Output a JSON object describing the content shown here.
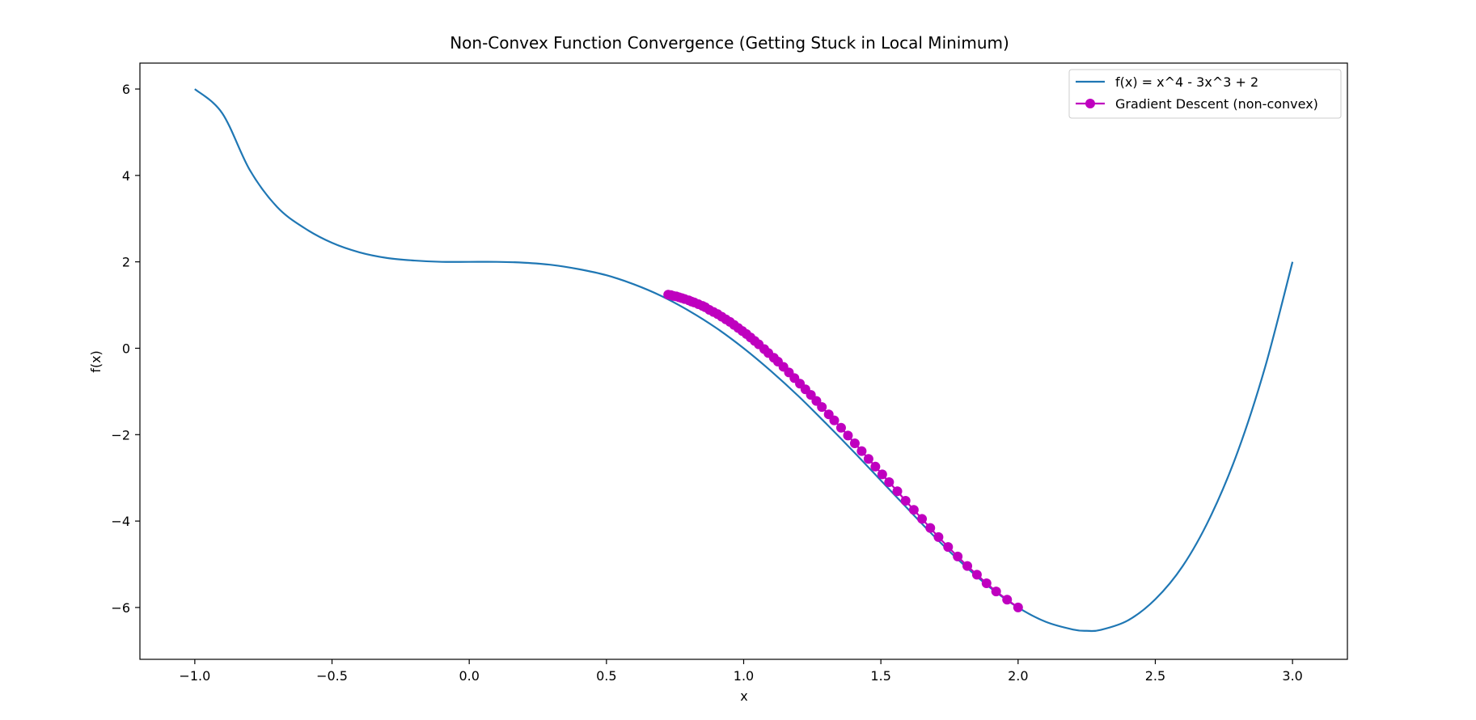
{
  "chart_data": {
    "type": "line",
    "title": "Non-Convex Function Convergence (Getting Stuck in Local Minimum)",
    "xlabel": "x",
    "ylabel": "f(x)",
    "xlim": [
      -1.2,
      3.2
    ],
    "ylim": [
      -7.2,
      6.6
    ],
    "x_ticks": [
      -1.0,
      -0.5,
      0.0,
      0.5,
      1.0,
      1.5,
      2.0,
      2.5,
      3.0
    ],
    "x_tick_labels": [
      "−1.0",
      "−0.5",
      "0.0",
      "0.5",
      "1.0",
      "1.5",
      "2.0",
      "2.5",
      "3.0"
    ],
    "y_ticks": [
      -6,
      -4,
      -2,
      0,
      2,
      4,
      6
    ],
    "y_tick_labels": [
      "−6",
      "−4",
      "−2",
      "0",
      "2",
      "4",
      "6"
    ],
    "grid": false,
    "legend_position": "top-right",
    "series": [
      {
        "name": "f(x) = x^4 - 3x^3 + 2",
        "kind": "line",
        "color": "#1f77b4",
        "x": [
          -1.0,
          -0.9,
          -0.8,
          -0.7,
          -0.6,
          -0.5,
          -0.4,
          -0.3,
          -0.2,
          -0.1,
          0.0,
          0.1,
          0.2,
          0.3,
          0.4,
          0.5,
          0.6,
          0.7,
          0.8,
          0.9,
          1.0,
          1.1,
          1.2,
          1.3,
          1.4,
          1.5,
          1.6,
          1.7,
          1.8,
          1.9,
          2.0,
          2.1,
          2.2,
          2.25,
          2.3,
          2.4,
          2.5,
          2.6,
          2.7,
          2.8,
          2.9,
          3.0
        ],
        "y": [
          6.0,
          5.44,
          4.13,
          3.27,
          2.78,
          2.44,
          2.22,
          2.09,
          2.03,
          2.0,
          2.0,
          2.0,
          1.98,
          1.93,
          1.83,
          1.69,
          1.48,
          1.21,
          0.87,
          0.47,
          0.0,
          -0.53,
          -1.11,
          -1.74,
          -2.39,
          -3.06,
          -3.73,
          -4.39,
          -5.0,
          -5.55,
          -6.0,
          -6.33,
          -6.51,
          -6.54,
          -6.52,
          -6.3,
          -5.81,
          -5.04,
          -3.91,
          -2.4,
          -0.44,
          2.0
        ]
      },
      {
        "name": "Gradient Descent (non-convex)",
        "kind": "line-marker",
        "color": "#bf00bf",
        "x": [
          2.0,
          1.96,
          1.92,
          1.885,
          1.85,
          1.815,
          1.78,
          1.745,
          1.71,
          1.68,
          1.65,
          1.62,
          1.59,
          1.56,
          1.53,
          1.505,
          1.48,
          1.455,
          1.43,
          1.405,
          1.38,
          1.355,
          1.33,
          1.31,
          1.285,
          1.265,
          1.245,
          1.225,
          1.205,
          1.185,
          1.165,
          1.145,
          1.125,
          1.11,
          1.09,
          1.075,
          1.055,
          1.04,
          1.025,
          1.01,
          0.995,
          0.98,
          0.965,
          0.95,
          0.935,
          0.92,
          0.905,
          0.89,
          0.875,
          0.86,
          0.85,
          0.835,
          0.82,
          0.81,
          0.8,
          0.785,
          0.775,
          0.765,
          0.755,
          0.745,
          0.735,
          0.725
        ],
        "y": [
          -6.0,
          -5.82,
          -5.63,
          -5.44,
          -5.24,
          -5.04,
          -4.82,
          -4.6,
          -4.37,
          -4.16,
          -3.95,
          -3.74,
          -3.53,
          -3.31,
          -3.1,
          -2.92,
          -2.74,
          -2.56,
          -2.38,
          -2.2,
          -2.02,
          -1.84,
          -1.67,
          -1.53,
          -1.36,
          -1.22,
          -1.08,
          -0.95,
          -0.82,
          -0.69,
          -0.56,
          -0.43,
          -0.31,
          -0.22,
          -0.11,
          -0.02,
          0.09,
          0.17,
          0.25,
          0.33,
          0.4,
          0.47,
          0.54,
          0.61,
          0.67,
          0.73,
          0.79,
          0.84,
          0.89,
          0.95,
          0.98,
          1.02,
          1.06,
          1.08,
          1.11,
          1.14,
          1.16,
          1.18,
          1.2,
          1.21,
          1.23,
          1.24
        ]
      }
    ]
  }
}
